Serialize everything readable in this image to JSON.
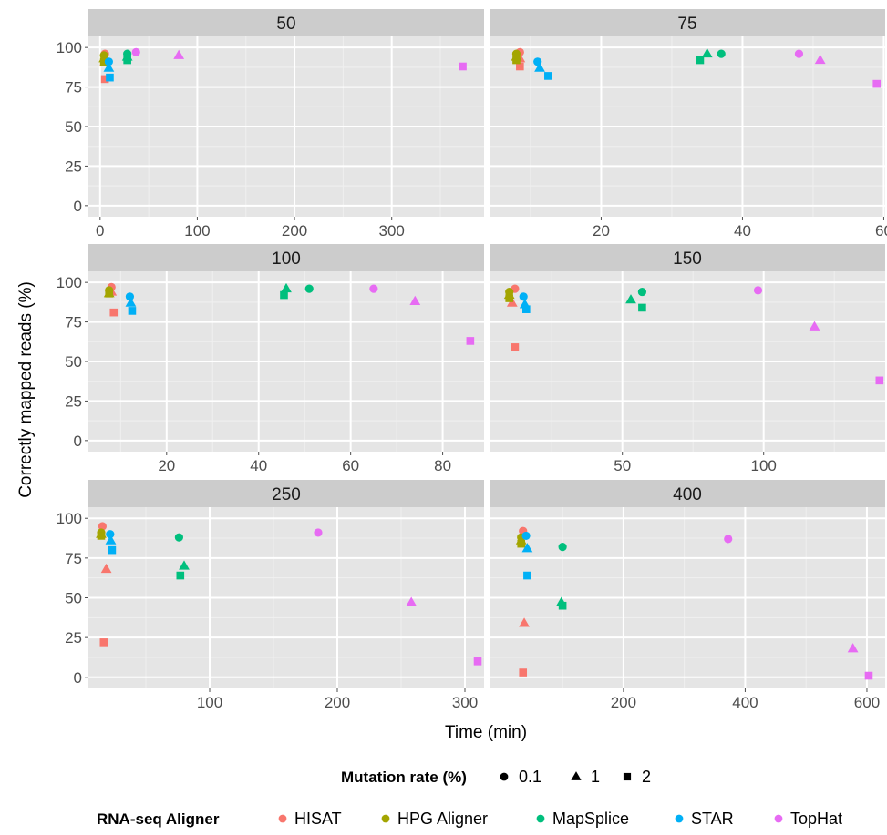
{
  "chart_data": {
    "type": "scatter",
    "xlabel": "Time (min)",
    "ylabel": "Correctly mapped reads (%)",
    "ylim": [
      0,
      100
    ],
    "yticks": [
      0,
      25,
      50,
      75,
      100
    ],
    "grid": true,
    "legend_placement": "bottom",
    "color_legend": {
      "title": "RNA-seq Aligner",
      "entries": [
        {
          "name": "HISAT",
          "color": "#f8766d"
        },
        {
          "name": "HPG Aligner",
          "color": "#a3a500"
        },
        {
          "name": "MapSplice",
          "color": "#00bf7d"
        },
        {
          "name": "STAR",
          "color": "#00b0f6"
        },
        {
          "name": "TopHat",
          "color": "#e76bf3"
        }
      ]
    },
    "shape_legend": {
      "title": "Mutation rate (%)",
      "entries": [
        {
          "label": "0.1",
          "shape": "circle"
        },
        {
          "label": "1",
          "shape": "triangle"
        },
        {
          "label": "2",
          "shape": "square"
        }
      ]
    },
    "panels": [
      {
        "label": "50",
        "xlim": [
          -12,
          395
        ],
        "xticks": [
          0,
          100,
          200,
          300
        ],
        "points": [
          {
            "aligner": "HISAT",
            "rate": "0.1",
            "x": 5,
            "y": 96
          },
          {
            "aligner": "HISAT",
            "rate": "1",
            "x": 5,
            "y": 91
          },
          {
            "aligner": "HISAT",
            "rate": "2",
            "x": 5,
            "y": 80
          },
          {
            "aligner": "HPG Aligner",
            "rate": "0.1",
            "x": 4,
            "y": 95
          },
          {
            "aligner": "HPG Aligner",
            "rate": "1",
            "x": 4,
            "y": 93
          },
          {
            "aligner": "HPG Aligner",
            "rate": "2",
            "x": 4,
            "y": 91
          },
          {
            "aligner": "MapSplice",
            "rate": "0.1",
            "x": 28,
            "y": 96
          },
          {
            "aligner": "MapSplice",
            "rate": "1",
            "x": 28,
            "y": 94
          },
          {
            "aligner": "MapSplice",
            "rate": "2",
            "x": 28,
            "y": 92
          },
          {
            "aligner": "STAR",
            "rate": "0.1",
            "x": 9,
            "y": 91
          },
          {
            "aligner": "STAR",
            "rate": "1",
            "x": 9,
            "y": 87
          },
          {
            "aligner": "STAR",
            "rate": "2",
            "x": 10,
            "y": 81
          },
          {
            "aligner": "TopHat",
            "rate": "0.1",
            "x": 37,
            "y": 97
          },
          {
            "aligner": "TopHat",
            "rate": "1",
            "x": 81,
            "y": 95
          },
          {
            "aligner": "TopHat",
            "rate": "2",
            "x": 373,
            "y": 88
          }
        ]
      },
      {
        "label": "75",
        "xlim": [
          4.2,
          60.2
        ],
        "xticks": [
          20,
          40,
          60
        ],
        "points": [
          {
            "aligner": "HISAT",
            "rate": "0.1",
            "x": 8.5,
            "y": 97
          },
          {
            "aligner": "HISAT",
            "rate": "1",
            "x": 8.5,
            "y": 93
          },
          {
            "aligner": "HISAT",
            "rate": "2",
            "x": 8.5,
            "y": 88
          },
          {
            "aligner": "HPG Aligner",
            "rate": "0.1",
            "x": 8,
            "y": 96
          },
          {
            "aligner": "HPG Aligner",
            "rate": "1",
            "x": 8,
            "y": 94
          },
          {
            "aligner": "HPG Aligner",
            "rate": "2",
            "x": 8,
            "y": 92
          },
          {
            "aligner": "MapSplice",
            "rate": "0.1",
            "x": 37,
            "y": 96
          },
          {
            "aligner": "MapSplice",
            "rate": "1",
            "x": 35,
            "y": 96
          },
          {
            "aligner": "MapSplice",
            "rate": "2",
            "x": 34,
            "y": 92
          },
          {
            "aligner": "STAR",
            "rate": "0.1",
            "x": 11,
            "y": 91
          },
          {
            "aligner": "STAR",
            "rate": "1",
            "x": 11.3,
            "y": 87
          },
          {
            "aligner": "STAR",
            "rate": "2",
            "x": 12.5,
            "y": 82
          },
          {
            "aligner": "TopHat",
            "rate": "0.1",
            "x": 48,
            "y": 96
          },
          {
            "aligner": "TopHat",
            "rate": "1",
            "x": 51,
            "y": 92
          },
          {
            "aligner": "TopHat",
            "rate": "2",
            "x": 59,
            "y": 77
          }
        ]
      },
      {
        "label": "100",
        "xlim": [
          3,
          89
        ],
        "xticks": [
          20,
          40,
          60,
          80
        ],
        "points": [
          {
            "aligner": "HISAT",
            "rate": "0.1",
            "x": 8,
            "y": 97
          },
          {
            "aligner": "HISAT",
            "rate": "1",
            "x": 8,
            "y": 94
          },
          {
            "aligner": "HISAT",
            "rate": "2",
            "x": 8.5,
            "y": 81
          },
          {
            "aligner": "HPG Aligner",
            "rate": "0.1",
            "x": 7.5,
            "y": 95
          },
          {
            "aligner": "HPG Aligner",
            "rate": "1",
            "x": 7.5,
            "y": 93
          },
          {
            "aligner": "HPG Aligner",
            "rate": "2",
            "x": 7.5,
            "y": 93
          },
          {
            "aligner": "MapSplice",
            "rate": "0.1",
            "x": 51,
            "y": 96
          },
          {
            "aligner": "MapSplice",
            "rate": "1",
            "x": 46,
            "y": 96
          },
          {
            "aligner": "MapSplice",
            "rate": "2",
            "x": 45.5,
            "y": 92
          },
          {
            "aligner": "STAR",
            "rate": "0.1",
            "x": 12,
            "y": 91
          },
          {
            "aligner": "STAR",
            "rate": "1",
            "x": 12.2,
            "y": 87
          },
          {
            "aligner": "STAR",
            "rate": "2",
            "x": 12.5,
            "y": 82
          },
          {
            "aligner": "TopHat",
            "rate": "0.1",
            "x": 65,
            "y": 96
          },
          {
            "aligner": "TopHat",
            "rate": "1",
            "x": 74,
            "y": 88
          },
          {
            "aligner": "TopHat",
            "rate": "2",
            "x": 86,
            "y": 63
          }
        ]
      },
      {
        "label": "150",
        "xlim": [
          3,
          143
        ],
        "xticks": [
          50,
          100
        ],
        "points": [
          {
            "aligner": "HISAT",
            "rate": "0.1",
            "x": 12,
            "y": 96
          },
          {
            "aligner": "HISAT",
            "rate": "1",
            "x": 11,
            "y": 87
          },
          {
            "aligner": "HISAT",
            "rate": "2",
            "x": 12,
            "y": 59
          },
          {
            "aligner": "HPG Aligner",
            "rate": "0.1",
            "x": 10,
            "y": 94
          },
          {
            "aligner": "HPG Aligner",
            "rate": "1",
            "x": 10,
            "y": 92
          },
          {
            "aligner": "HPG Aligner",
            "rate": "2",
            "x": 10,
            "y": 90
          },
          {
            "aligner": "MapSplice",
            "rate": "0.1",
            "x": 57,
            "y": 94
          },
          {
            "aligner": "MapSplice",
            "rate": "1",
            "x": 53,
            "y": 89
          },
          {
            "aligner": "MapSplice",
            "rate": "2",
            "x": 57,
            "y": 84
          },
          {
            "aligner": "STAR",
            "rate": "0.1",
            "x": 15,
            "y": 91
          },
          {
            "aligner": "STAR",
            "rate": "1",
            "x": 15.5,
            "y": 86
          },
          {
            "aligner": "STAR",
            "rate": "2",
            "x": 16,
            "y": 83
          },
          {
            "aligner": "TopHat",
            "rate": "0.1",
            "x": 98,
            "y": 95
          },
          {
            "aligner": "TopHat",
            "rate": "1",
            "x": 118,
            "y": 72
          },
          {
            "aligner": "TopHat",
            "rate": "2",
            "x": 141,
            "y": 38
          }
        ]
      },
      {
        "label": "250",
        "xlim": [
          5,
          315
        ],
        "xticks": [
          100,
          200,
          300
        ],
        "points": [
          {
            "aligner": "HISAT",
            "rate": "0.1",
            "x": 16,
            "y": 95
          },
          {
            "aligner": "HISAT",
            "rate": "1",
            "x": 19,
            "y": 68
          },
          {
            "aligner": "HISAT",
            "rate": "2",
            "x": 17,
            "y": 22
          },
          {
            "aligner": "HPG Aligner",
            "rate": "0.1",
            "x": 15,
            "y": 91
          },
          {
            "aligner": "HPG Aligner",
            "rate": "1",
            "x": 15,
            "y": 90
          },
          {
            "aligner": "HPG Aligner",
            "rate": "2",
            "x": 15,
            "y": 89
          },
          {
            "aligner": "MapSplice",
            "rate": "0.1",
            "x": 76,
            "y": 88
          },
          {
            "aligner": "MapSplice",
            "rate": "1",
            "x": 80,
            "y": 70
          },
          {
            "aligner": "MapSplice",
            "rate": "2",
            "x": 77,
            "y": 64
          },
          {
            "aligner": "STAR",
            "rate": "0.1",
            "x": 22,
            "y": 90
          },
          {
            "aligner": "STAR",
            "rate": "1",
            "x": 22.5,
            "y": 86
          },
          {
            "aligner": "STAR",
            "rate": "2",
            "x": 23.5,
            "y": 80
          },
          {
            "aligner": "TopHat",
            "rate": "0.1",
            "x": 185,
            "y": 91
          },
          {
            "aligner": "TopHat",
            "rate": "1",
            "x": 258,
            "y": 47
          },
          {
            "aligner": "TopHat",
            "rate": "2",
            "x": 310,
            "y": 10
          }
        ]
      },
      {
        "label": "400",
        "xlim": [
          -20,
          630
        ],
        "xticks": [
          200,
          400,
          600
        ],
        "points": [
          {
            "aligner": "HISAT",
            "rate": "0.1",
            "x": 35,
            "y": 92
          },
          {
            "aligner": "HISAT",
            "rate": "1",
            "x": 37,
            "y": 34
          },
          {
            "aligner": "HISAT",
            "rate": "2",
            "x": 35,
            "y": 3
          },
          {
            "aligner": "HPG Aligner",
            "rate": "0.1",
            "x": 32,
            "y": 88
          },
          {
            "aligner": "HPG Aligner",
            "rate": "1",
            "x": 32,
            "y": 86
          },
          {
            "aligner": "HPG Aligner",
            "rate": "2",
            "x": 32,
            "y": 84
          },
          {
            "aligner": "MapSplice",
            "rate": "0.1",
            "x": 100,
            "y": 82
          },
          {
            "aligner": "MapSplice",
            "rate": "1",
            "x": 98,
            "y": 47
          },
          {
            "aligner": "MapSplice",
            "rate": "2",
            "x": 100,
            "y": 45
          },
          {
            "aligner": "STAR",
            "rate": "0.1",
            "x": 40,
            "y": 89
          },
          {
            "aligner": "STAR",
            "rate": "1",
            "x": 42,
            "y": 81
          },
          {
            "aligner": "STAR",
            "rate": "2",
            "x": 42,
            "y": 64
          },
          {
            "aligner": "TopHat",
            "rate": "0.1",
            "x": 372,
            "y": 87
          },
          {
            "aligner": "TopHat",
            "rate": "1",
            "x": 577,
            "y": 18
          },
          {
            "aligner": "TopHat",
            "rate": "2",
            "x": 603,
            "y": 1
          }
        ]
      }
    ]
  }
}
